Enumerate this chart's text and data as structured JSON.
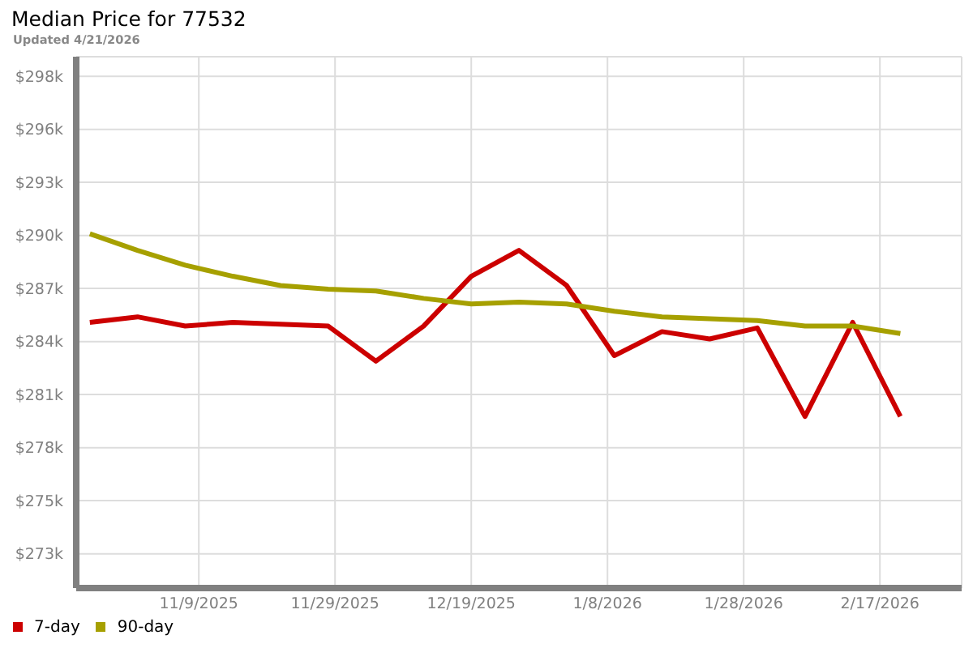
{
  "chart_data": {
    "type": "line",
    "title": "Median Price for 77532",
    "subtitle": "Updated 4/21/2026",
    "x": [
      "2025-10-24",
      "2025-10-31",
      "2025-11-07",
      "2025-11-14",
      "2025-11-21",
      "2025-11-28",
      "2025-12-05",
      "2025-12-12",
      "2025-12-19",
      "2025-12-26",
      "2026-01-02",
      "2026-01-09",
      "2026-01-16",
      "2026-01-23",
      "2026-01-30",
      "2026-02-06",
      "2026-02-13",
      "2026-02-20"
    ],
    "series": [
      {
        "name": "7-day",
        "color": "#cc0000",
        "values": [
          285.1,
          285.4,
          284.9,
          285.1,
          285.0,
          284.9,
          283.0,
          284.9,
          287.6,
          289.0,
          287.1,
          283.3,
          284.6,
          284.2,
          284.8,
          280.0,
          285.1,
          280.0
        ]
      },
      {
        "name": "90-day",
        "color": "#a6a000",
        "values": [
          289.9,
          289.0,
          288.2,
          287.6,
          287.1,
          286.9,
          286.8,
          286.4,
          286.1,
          286.2,
          286.1,
          285.7,
          285.4,
          285.3,
          285.2,
          284.9,
          284.9,
          284.5
        ]
      }
    ],
    "xlim": [
      "2025-10-22",
      "2026-03-01"
    ],
    "xticks": [
      {
        "value": "2025-11-09",
        "label": "11/9/2025"
      },
      {
        "value": "2025-11-29",
        "label": "11/29/2025"
      },
      {
        "value": "2025-12-19",
        "label": "12/19/2025"
      },
      {
        "value": "2026-01-08",
        "label": "1/8/2026"
      },
      {
        "value": "2026-01-28",
        "label": "1/28/2026"
      },
      {
        "value": "2026-02-17",
        "label": "2/17/2026"
      }
    ],
    "ylim": [
      270.7,
      299.5
    ],
    "yticks": [
      {
        "value": 272.56,
        "label": "$273k"
      },
      {
        "value": 275.44,
        "label": "$275k"
      },
      {
        "value": 278.31,
        "label": "$278k"
      },
      {
        "value": 281.19,
        "label": "$281k"
      },
      {
        "value": 284.06,
        "label": "$284k"
      },
      {
        "value": 286.94,
        "label": "$287k"
      },
      {
        "value": 289.81,
        "label": "$290k"
      },
      {
        "value": 292.69,
        "label": "$293k"
      },
      {
        "value": 295.56,
        "label": "$296k"
      },
      {
        "value": 298.44,
        "label": "$298k"
      }
    ],
    "grid": true,
    "legend": "bottom left"
  }
}
